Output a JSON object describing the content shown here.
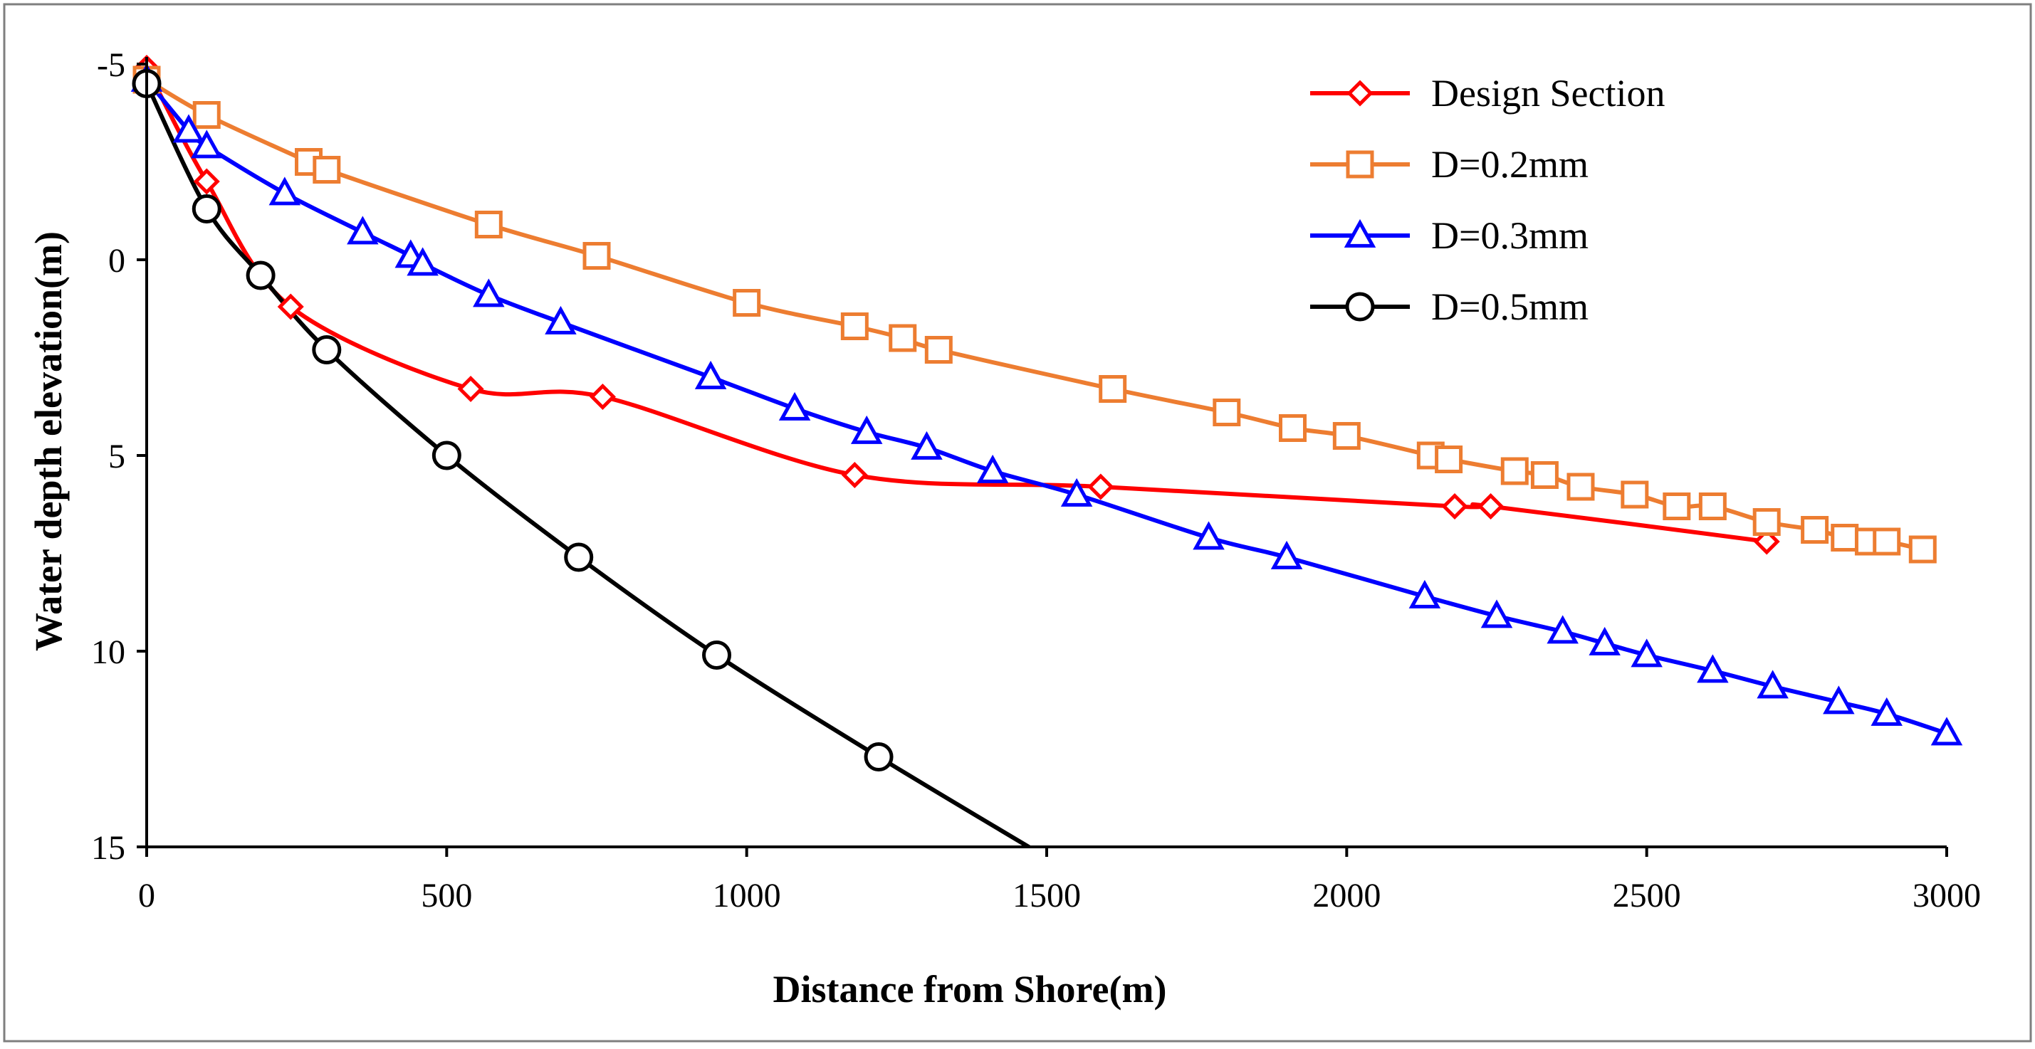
{
  "chart_data": {
    "type": "line",
    "title": "",
    "xlabel": "Distance from Shore(m)",
    "ylabel": "Water depth elevation(m)",
    "xlim": [
      0,
      3000
    ],
    "ylim": [
      -5,
      15
    ],
    "y_axis_inverted": true,
    "x_ticks": [
      0,
      500,
      1000,
      1500,
      2000,
      2500,
      3000
    ],
    "y_ticks": [
      -5,
      0,
      5,
      10,
      15
    ],
    "x_tick_labels": [
      "0",
      "500",
      "1000",
      "1500",
      "2000",
      "2500",
      "3000"
    ],
    "y_tick_labels": [
      "-5",
      "0",
      "5",
      "10",
      "15"
    ],
    "grid": false,
    "legend_position": "top-right",
    "series": [
      {
        "name": "Design Section",
        "color": "#ff0000",
        "marker": "diamond",
        "x": [
          0,
          100,
          240,
          540,
          760,
          1180,
          1590,
          2180,
          2240,
          2700
        ],
        "y": [
          -4.9,
          -2.0,
          1.2,
          3.3,
          3.5,
          5.5,
          5.8,
          6.3,
          6.3,
          7.2
        ]
      },
      {
        "name": "D=0.2mm",
        "color": "#ed7d31",
        "marker": "square",
        "x": [
          0,
          100,
          270,
          300,
          570,
          750,
          1000,
          1180,
          1260,
          1320,
          1610,
          1800,
          1910,
          2000,
          2140,
          2170,
          2280,
          2330,
          2390,
          2480,
          2550,
          2610,
          2700,
          2780,
          2830,
          2870,
          2900,
          2960
        ],
        "y": [
          -4.6,
          -3.7,
          -2.5,
          -2.3,
          -0.9,
          -0.1,
          1.1,
          1.7,
          2.0,
          2.3,
          3.3,
          3.9,
          4.3,
          4.5,
          5.0,
          5.1,
          5.4,
          5.5,
          5.8,
          6.0,
          6.3,
          6.3,
          6.7,
          6.9,
          7.1,
          7.2,
          7.2,
          7.4
        ]
      },
      {
        "name": "D=0.3mm",
        "color": "#0000ff",
        "marker": "triangle",
        "x": [
          0,
          70,
          100,
          230,
          360,
          440,
          460,
          570,
          690,
          940,
          1080,
          1200,
          1300,
          1410,
          1550,
          1770,
          1900,
          2130,
          2250,
          2360,
          2430,
          2500,
          2610,
          2710,
          2820,
          2900,
          3000
        ],
        "y": [
          -4.6,
          -3.3,
          -2.9,
          -1.7,
          -0.7,
          -0.1,
          0.1,
          0.9,
          1.6,
          3.0,
          3.8,
          4.4,
          4.8,
          5.4,
          6.0,
          7.1,
          7.6,
          8.6,
          9.1,
          9.5,
          9.8,
          10.1,
          10.5,
          10.9,
          11.3,
          11.6,
          12.1
        ]
      },
      {
        "name": "D=0.5mm",
        "color": "#000000",
        "marker": "circle",
        "x": [
          0,
          100,
          190,
          300,
          500,
          720,
          950,
          1220
        ],
        "y": [
          -4.5,
          -1.3,
          0.4,
          2.3,
          5.0,
          7.6,
          10.1,
          12.7
        ]
      },
      {
        "name": "",
        "role": "unmarked end of D=0.5mm curve",
        "x": [
          1220,
          1470
        ],
        "y": [
          12.7,
          15.0
        ]
      }
    ]
  }
}
